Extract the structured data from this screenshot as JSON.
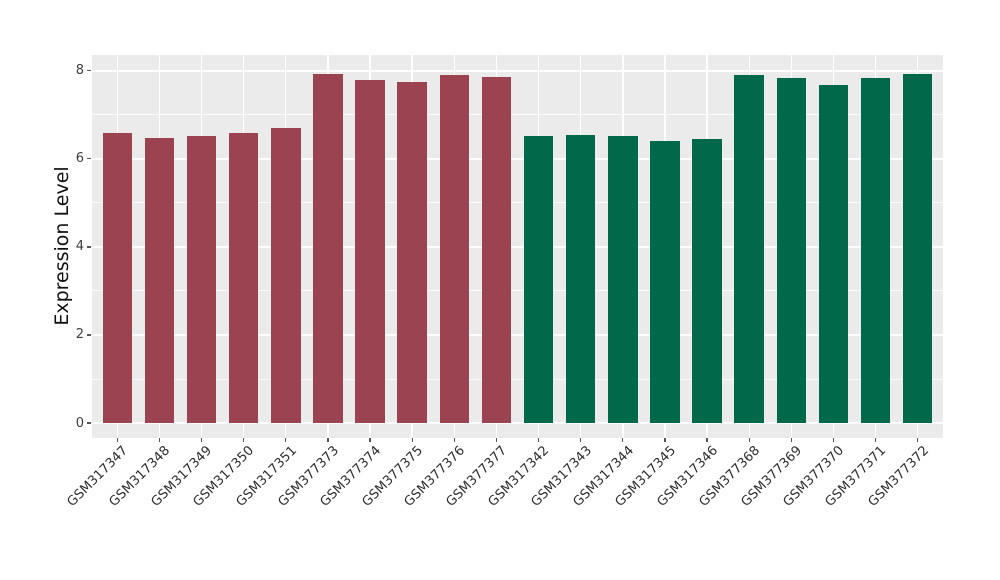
{
  "chart_data": {
    "type": "bar",
    "title": "",
    "xlabel": "",
    "ylabel": "Expression Level",
    "categories": [
      "GSM317347",
      "GSM317348",
      "GSM317349",
      "GSM317350",
      "GSM317351",
      "GSM377373",
      "GSM377374",
      "GSM377375",
      "GSM377376",
      "GSM377377",
      "GSM317342",
      "GSM317343",
      "GSM317344",
      "GSM317345",
      "GSM317346",
      "GSM377368",
      "GSM377369",
      "GSM377370",
      "GSM377371",
      "GSM377372"
    ],
    "values": [
      6.58,
      6.47,
      6.53,
      6.58,
      6.7,
      7.93,
      7.79,
      7.74,
      7.9,
      7.87,
      6.53,
      6.54,
      6.51,
      6.4,
      6.45,
      7.91,
      7.83,
      7.68,
      7.83,
      7.93
    ],
    "bar_colors": [
      "#9C4351",
      "#9C4351",
      "#9C4351",
      "#9C4351",
      "#9C4351",
      "#9C4351",
      "#9C4351",
      "#9C4351",
      "#9C4351",
      "#9C4351",
      "#016849",
      "#016849",
      "#016849",
      "#016849",
      "#016849",
      "#016849",
      "#016849",
      "#016849",
      "#016849",
      "#016849"
    ],
    "y_ticks": [
      0,
      2,
      4,
      6,
      8
    ],
    "y_tick_labels": [
      "0",
      "2",
      "4",
      "6",
      "8"
    ],
    "y_minor_ticks": [
      1,
      3,
      5,
      7
    ],
    "ylim": [
      0,
      8.36
    ],
    "y_panel_range": [
      -0.34,
      8.36
    ],
    "grid": true,
    "legend": "none",
    "panel_bg": "#EBEBEB",
    "grid_color": "#FFFFFF"
  }
}
